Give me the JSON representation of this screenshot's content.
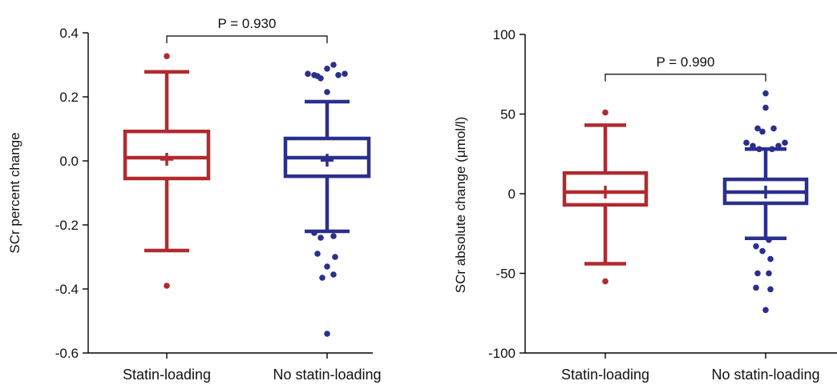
{
  "colors": {
    "statin": "#b12a2f",
    "no_statin": "#2b2f8c",
    "axis": "#000000"
  },
  "chart_data": [
    {
      "type": "box",
      "ylabel": "SCr percent change",
      "ylim": [
        -0.6,
        0.4
      ],
      "yticks": [
        {
          "value": 0.4,
          "label": "0.4"
        },
        {
          "value": 0.2,
          "label": "0.2"
        },
        {
          "value": 0.0,
          "label": "0.0"
        },
        {
          "value": -0.2,
          "label": "-0.2"
        },
        {
          "value": -0.4,
          "label": "-0.4"
        },
        {
          "value": -0.6,
          "label": "-0.6"
        }
      ],
      "categories": [
        "Statin-loading",
        "No statin-loading"
      ],
      "comparison": {
        "label": "P = 0.930",
        "y": 0.39
      },
      "groups": [
        {
          "category": "Statin-loading",
          "color_key": "statin",
          "q1": -0.055,
          "median": 0.01,
          "q3": 0.092,
          "mean": 0.005,
          "whisker_low": -0.28,
          "whisker_high": 0.278,
          "outliers": [
            0.327,
            -0.39
          ]
        },
        {
          "category": "No statin-loading",
          "color_key": "no_statin",
          "q1": -0.048,
          "median": 0.01,
          "q3": 0.07,
          "mean": 0.002,
          "whisker_low": -0.22,
          "whisker_high": 0.185,
          "outliers": [
            {
              "y": 0.272,
              "dx": -24
            },
            {
              "y": 0.268,
              "dx": -16
            },
            {
              "y": 0.258,
              "dx": -8
            },
            {
              "y": 0.288,
              "dx": 0
            },
            {
              "y": 0.3,
              "dx": 8
            },
            {
              "y": 0.268,
              "dx": 14
            },
            {
              "y": 0.272,
              "dx": 22
            },
            {
              "y": 0.265,
              "dx": -12
            },
            {
              "y": 0.215,
              "dx": 0
            },
            {
              "y": -0.225,
              "dx": -16
            },
            {
              "y": -0.24,
              "dx": -8
            },
            {
              "y": -0.235,
              "dx": 8
            },
            {
              "y": -0.29,
              "dx": -12
            },
            {
              "y": -0.3,
              "dx": 10
            },
            {
              "y": -0.33,
              "dx": 0
            },
            {
              "y": -0.355,
              "dx": 8
            },
            {
              "y": -0.365,
              "dx": -6
            },
            {
              "y": -0.54,
              "dx": 0
            }
          ]
        }
      ]
    },
    {
      "type": "box",
      "ylabel": "SCr absolute change (μmol/l)",
      "ylim": [
        -100,
        100
      ],
      "yticks": [
        {
          "value": 100,
          "label": "100"
        },
        {
          "value": 50,
          "label": "50"
        },
        {
          "value": 0,
          "label": "0"
        },
        {
          "value": -50,
          "label": "-50"
        },
        {
          "value": -100,
          "label": "-100"
        }
      ],
      "categories": [
        "Statin-loading",
        "No statin-loading"
      ],
      "comparison": {
        "label": "P = 0.990",
        "y": 75
      },
      "groups": [
        {
          "category": "Statin-loading",
          "color_key": "statin",
          "q1": -7,
          "median": 1,
          "q3": 13,
          "mean": 1,
          "whisker_low": -44,
          "whisker_high": 43,
          "outliers": [
            51,
            -55
          ]
        },
        {
          "category": "No statin-loading",
          "color_key": "no_statin",
          "q1": -6,
          "median": 1,
          "q3": 9,
          "mean": 1,
          "whisker_low": -28,
          "whisker_high": 28,
          "outliers": [
            {
              "y": 63,
              "dx": 0
            },
            {
              "y": 54,
              "dx": 0
            },
            {
              "y": 41,
              "dx": -10
            },
            {
              "y": 41,
              "dx": 10
            },
            {
              "y": 39,
              "dx": -4
            },
            {
              "y": 32,
              "dx": -24
            },
            {
              "y": 30,
              "dx": -16
            },
            {
              "y": 28,
              "dx": -8
            },
            {
              "y": 28,
              "dx": 8
            },
            {
              "y": 30,
              "dx": 16
            },
            {
              "y": 32,
              "dx": 24
            },
            {
              "y": -29,
              "dx": 4
            },
            {
              "y": -33,
              "dx": -12
            },
            {
              "y": -36,
              "dx": -4
            },
            {
              "y": -41,
              "dx": 6
            },
            {
              "y": -50,
              "dx": -10
            },
            {
              "y": -50,
              "dx": 4
            },
            {
              "y": -59,
              "dx": -12
            },
            {
              "y": -60,
              "dx": 6
            },
            {
              "y": -73,
              "dx": 0
            }
          ]
        }
      ]
    }
  ]
}
